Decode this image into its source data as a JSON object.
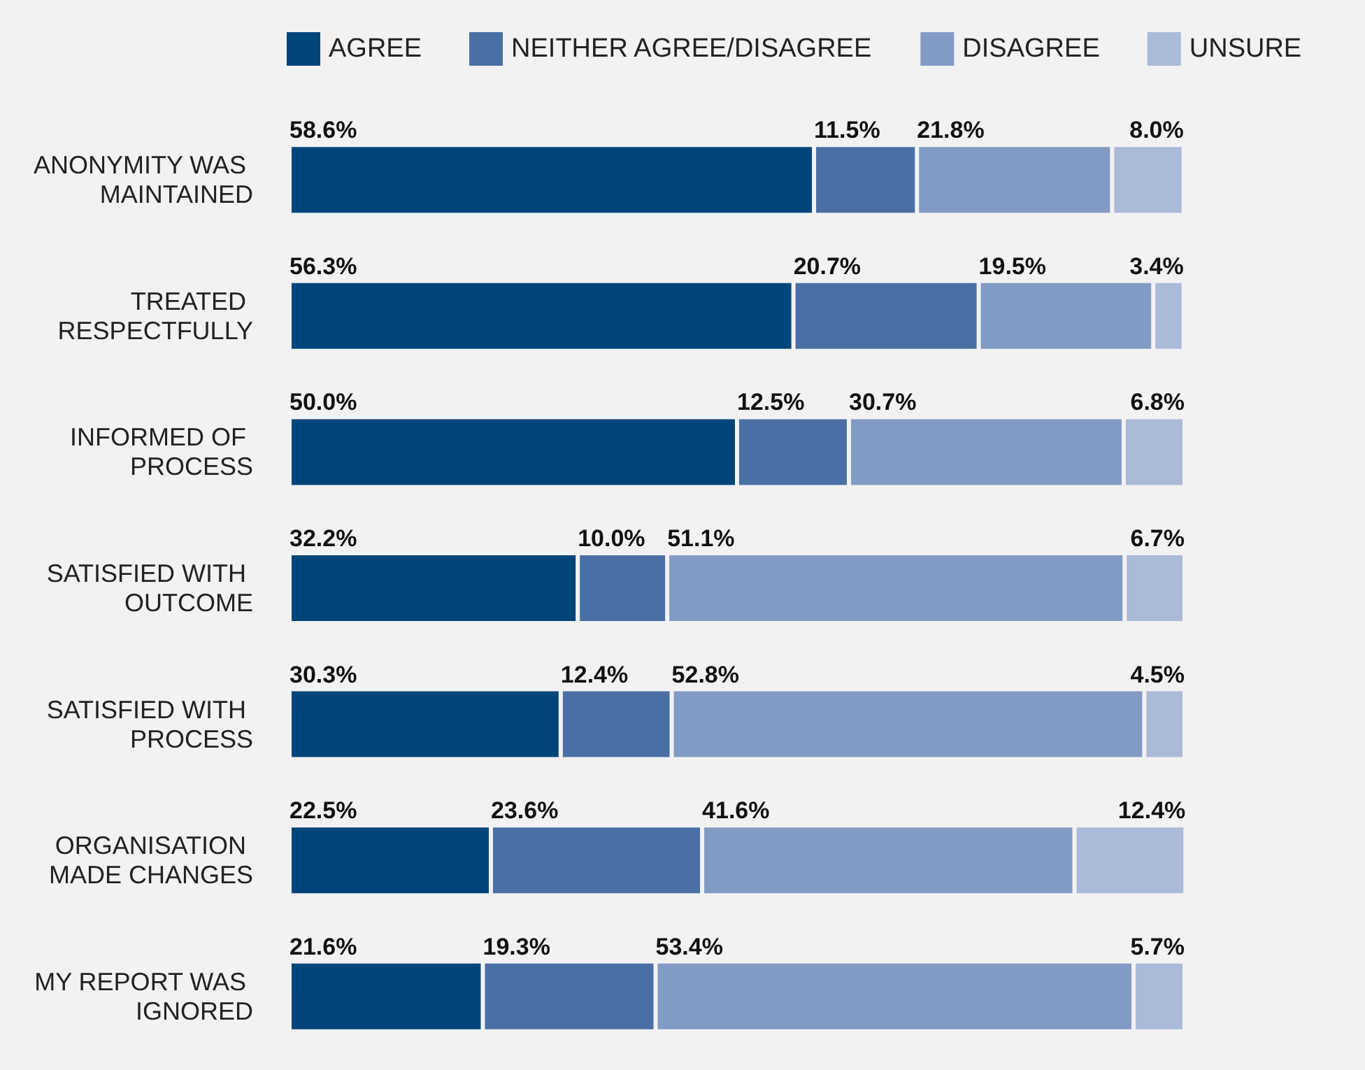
{
  "chart_data": {
    "type": "bar",
    "orientation": "horizontal",
    "stacked": true,
    "legend": "top",
    "tick_labels": "y",
    "categories": [
      "ANONYMITY WAS MAINTAINED",
      "TREATED RESPECTFULLY",
      "INFORMED OF PROCESS",
      "SATISFIED WITH OUTCOME",
      "SATISFIED WITH PROCESS",
      "ORGANISATION MADE CHANGES",
      "MY REPORT WAS IGNORED"
    ],
    "series": [
      {
        "name": "AGREE",
        "color": "#00457a",
        "values": [
          58.6,
          56.3,
          50.0,
          32.2,
          30.3,
          22.5,
          21.6
        ],
        "value_labels": [
          "58.6%",
          "56.3%",
          "50.0%",
          "32.2%",
          "30.3%",
          "22.5%",
          "21.6%"
        ]
      },
      {
        "name": "NEITHER AGREE/DISAGREE",
        "color": "#4a6fa5",
        "values": [
          11.5,
          20.7,
          12.5,
          10.0,
          12.4,
          23.6,
          19.3
        ],
        "value_labels": [
          "11.5%",
          "20.7%",
          "12.5%",
          "10.0%",
          "12.4%",
          "23.6%",
          "19.3%"
        ]
      },
      {
        "name": "DISAGREE",
        "color": "#829bc4",
        "values": [
          21.8,
          19.5,
          30.7,
          51.1,
          52.8,
          41.6,
          53.4
        ],
        "value_labels": [
          "21.8%",
          "19.5%",
          "30.7%",
          "51.1%",
          "52.8%",
          "41.6%",
          "53.4%"
        ]
      },
      {
        "name": "UNSURE",
        "color": "#aabad8",
        "values": [
          8.0,
          3.4,
          6.8,
          6.7,
          4.5,
          12.4,
          5.7
        ],
        "value_labels": [
          "8.0%",
          "3.4%",
          "6.8%",
          "6.7%",
          "4.5%",
          "12.4%",
          "5.7%"
        ]
      }
    ]
  }
}
